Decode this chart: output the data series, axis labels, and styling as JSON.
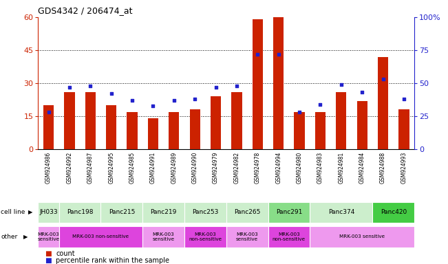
{
  "title": "GDS4342 / 206474_at",
  "samples": [
    "GSM924986",
    "GSM924992",
    "GSM924987",
    "GSM924995",
    "GSM924985",
    "GSM924991",
    "GSM924989",
    "GSM924990",
    "GSM924979",
    "GSM924982",
    "GSM924978",
    "GSM924994",
    "GSM924980",
    "GSM924983",
    "GSM924981",
    "GSM924984",
    "GSM924988",
    "GSM924993"
  ],
  "count_values": [
    20,
    26,
    26,
    20,
    17,
    14,
    17,
    18,
    24,
    26,
    59,
    60,
    17,
    17,
    26,
    22,
    42,
    18
  ],
  "percentile_values": [
    28,
    47,
    48,
    42,
    37,
    33,
    37,
    38,
    47,
    48,
    72,
    72,
    28,
    34,
    49,
    43,
    53,
    38
  ],
  "cell_lines": [
    {
      "label": "JH033",
      "start": 0,
      "end": 1,
      "color": "#cceecc"
    },
    {
      "label": "Panc198",
      "start": 1,
      "end": 3,
      "color": "#cceecc"
    },
    {
      "label": "Panc215",
      "start": 3,
      "end": 5,
      "color": "#cceecc"
    },
    {
      "label": "Panc219",
      "start": 5,
      "end": 7,
      "color": "#cceecc"
    },
    {
      "label": "Panc253",
      "start": 7,
      "end": 9,
      "color": "#cceecc"
    },
    {
      "label": "Panc265",
      "start": 9,
      "end": 11,
      "color": "#cceecc"
    },
    {
      "label": "Panc291",
      "start": 11,
      "end": 13,
      "color": "#88dd88"
    },
    {
      "label": "Panc374",
      "start": 13,
      "end": 16,
      "color": "#cceecc"
    },
    {
      "label": "Panc420",
      "start": 16,
      "end": 18,
      "color": "#44cc44"
    }
  ],
  "other_rows": [
    {
      "label": "MRK-003\nsensitive",
      "start": 0,
      "end": 1,
      "color": "#ee99ee"
    },
    {
      "label": "MRK-003 non-sensitive",
      "start": 1,
      "end": 5,
      "color": "#dd44dd"
    },
    {
      "label": "MRK-003\nsensitive",
      "start": 5,
      "end": 7,
      "color": "#ee99ee"
    },
    {
      "label": "MRK-003\nnon-sensitive",
      "start": 7,
      "end": 9,
      "color": "#dd44dd"
    },
    {
      "label": "MRK-003\nsensitive",
      "start": 9,
      "end": 11,
      "color": "#ee99ee"
    },
    {
      "label": "MRK-003\nnon-sensitive",
      "start": 11,
      "end": 13,
      "color": "#dd44dd"
    },
    {
      "label": "MRK-003 sensitive",
      "start": 13,
      "end": 18,
      "color": "#ee99ee"
    }
  ],
  "ylim_left": [
    0,
    60
  ],
  "ylim_right": [
    0,
    100
  ],
  "yticks_left": [
    0,
    15,
    30,
    45,
    60
  ],
  "yticks_right": [
    0,
    25,
    50,
    75,
    100
  ],
  "bar_color": "#cc2200",
  "dot_color": "#2222cc",
  "chart_bg": "#ffffff",
  "xtick_bg": "#cccccc",
  "left_axis_color": "#cc2200",
  "right_axis_color": "#2222cc",
  "dotted_lines": [
    15,
    30,
    45
  ]
}
